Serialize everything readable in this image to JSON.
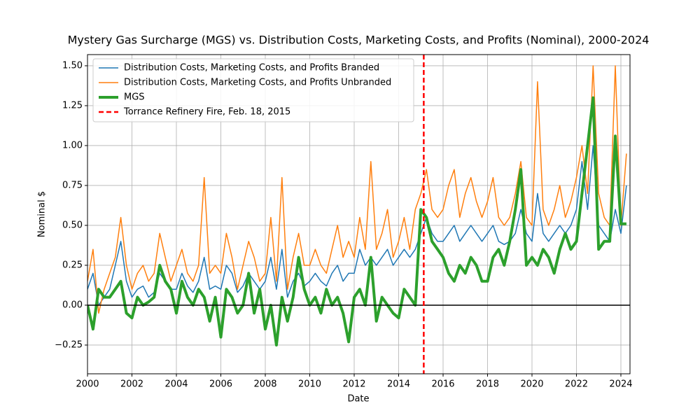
{
  "chart_data": {
    "type": "line",
    "title": "Mystery Gas Surcharge (MGS) vs. Distribution Costs, Marketing Costs, and Profits (Nominal), 2000-2024",
    "x_label": "Date",
    "y_label": "Nominal $",
    "x": [
      2000,
      2000.25,
      2000.5,
      2000.75,
      2001,
      2001.25,
      2001.5,
      2001.75,
      2002,
      2002.25,
      2002.5,
      2002.75,
      2003,
      2003.25,
      2003.5,
      2003.75,
      2004,
      2004.25,
      2004.5,
      2004.75,
      2005,
      2005.25,
      2005.5,
      2005.75,
      2006,
      2006.25,
      2006.5,
      2006.75,
      2007,
      2007.25,
      2007.5,
      2007.75,
      2008,
      2008.25,
      2008.5,
      2008.75,
      2009,
      2009.25,
      2009.5,
      2009.75,
      2010,
      2010.25,
      2010.5,
      2010.75,
      2011,
      2011.25,
      2011.5,
      2011.75,
      2012,
      2012.25,
      2012.5,
      2012.75,
      2013,
      2013.25,
      2013.5,
      2013.75,
      2014,
      2014.25,
      2014.5,
      2014.75,
      2015,
      2015.25,
      2015.5,
      2015.75,
      2016,
      2016.25,
      2016.5,
      2016.75,
      2017,
      2017.25,
      2017.5,
      2017.75,
      2018,
      2018.25,
      2018.5,
      2018.75,
      2019,
      2019.25,
      2019.5,
      2019.75,
      2020,
      2020.25,
      2020.5,
      2020.75,
      2021,
      2021.25,
      2021.5,
      2021.75,
      2022,
      2022.25,
      2022.5,
      2022.75,
      2023,
      2023.25,
      2023.5,
      2023.75,
      2024,
      2024.25
    ],
    "series": [
      {
        "name": "Distribution Costs, Marketing Costs, and Profits Branded",
        "color": "#1f77b4",
        "width": 1.5,
        "values": [
          0.1,
          0.2,
          0.0,
          0.05,
          0.1,
          0.25,
          0.4,
          0.15,
          0.05,
          0.1,
          0.12,
          0.05,
          0.08,
          0.2,
          0.15,
          0.1,
          0.1,
          0.2,
          0.12,
          0.08,
          0.15,
          0.3,
          0.1,
          0.12,
          0.1,
          0.25,
          0.2,
          0.08,
          0.12,
          0.2,
          0.15,
          0.1,
          0.15,
          0.3,
          0.1,
          0.35,
          0.05,
          0.15,
          0.2,
          0.12,
          0.15,
          0.2,
          0.15,
          0.12,
          0.2,
          0.25,
          0.15,
          0.2,
          0.2,
          0.35,
          0.25,
          0.3,
          0.25,
          0.3,
          0.35,
          0.25,
          0.3,
          0.35,
          0.3,
          0.35,
          0.45,
          0.55,
          0.45,
          0.4,
          0.4,
          0.45,
          0.5,
          0.4,
          0.45,
          0.5,
          0.45,
          0.4,
          0.45,
          0.5,
          0.4,
          0.38,
          0.4,
          0.45,
          0.6,
          0.45,
          0.4,
          0.7,
          0.45,
          0.4,
          0.45,
          0.5,
          0.45,
          0.5,
          0.6,
          0.9,
          0.6,
          1.0,
          0.5,
          0.45,
          0.4,
          0.6,
          0.45,
          0.75
        ]
      },
      {
        "name": "Distribution Costs, Marketing Costs, and Profits Unbranded",
        "color": "#ff7f0e",
        "width": 1.5,
        "values": [
          0.15,
          0.35,
          -0.05,
          0.1,
          0.2,
          0.3,
          0.55,
          0.25,
          0.1,
          0.2,
          0.25,
          0.15,
          0.2,
          0.45,
          0.3,
          0.15,
          0.25,
          0.35,
          0.2,
          0.15,
          0.25,
          0.8,
          0.2,
          0.25,
          0.2,
          0.45,
          0.3,
          0.1,
          0.25,
          0.4,
          0.3,
          0.15,
          0.2,
          0.55,
          0.15,
          0.8,
          0.1,
          0.3,
          0.45,
          0.25,
          0.25,
          0.35,
          0.25,
          0.2,
          0.35,
          0.5,
          0.3,
          0.4,
          0.3,
          0.55,
          0.35,
          0.9,
          0.35,
          0.45,
          0.6,
          0.3,
          0.4,
          0.55,
          0.35,
          0.6,
          0.7,
          0.85,
          0.6,
          0.55,
          0.6,
          0.75,
          0.85,
          0.55,
          0.7,
          0.8,
          0.65,
          0.55,
          0.65,
          0.8,
          0.55,
          0.5,
          0.55,
          0.7,
          0.9,
          0.55,
          0.5,
          1.4,
          0.6,
          0.5,
          0.6,
          0.75,
          0.55,
          0.65,
          0.8,
          1.0,
          0.7,
          1.5,
          0.7,
          0.55,
          0.5,
          1.5,
          0.5,
          0.95
        ]
      },
      {
        "name": "MGS",
        "color": "#2ca02c",
        "width": 4,
        "values": [
          0.0,
          -0.15,
          0.1,
          0.05,
          0.05,
          0.1,
          0.15,
          -0.05,
          -0.08,
          0.05,
          0.0,
          0.02,
          0.05,
          0.25,
          0.15,
          0.1,
          -0.05,
          0.15,
          0.05,
          0.0,
          0.1,
          0.05,
          -0.1,
          0.05,
          -0.2,
          0.1,
          0.05,
          -0.05,
          0.0,
          0.2,
          -0.05,
          0.1,
          -0.15,
          0.0,
          -0.25,
          0.05,
          -0.1,
          0.05,
          0.3,
          0.1,
          0.0,
          0.05,
          -0.05,
          0.1,
          0.0,
          0.05,
          -0.05,
          -0.23,
          0.05,
          0.1,
          0.0,
          0.3,
          -0.1,
          0.05,
          0.0,
          -0.05,
          -0.08,
          0.1,
          0.05,
          0.0,
          0.6,
          0.55,
          0.4,
          0.35,
          0.3,
          0.2,
          0.15,
          0.25,
          0.2,
          0.3,
          0.25,
          0.15,
          0.15,
          0.3,
          0.35,
          0.25,
          0.4,
          0.6,
          0.85,
          0.25,
          0.3,
          0.25,
          0.35,
          0.3,
          0.2,
          0.35,
          0.45,
          0.35,
          0.4,
          0.7,
          1.0,
          1.3,
          0.35,
          0.4,
          0.4,
          1.06,
          0.51,
          0.51
        ]
      }
    ],
    "vline": {
      "x": 2015.13,
      "label": "Torrance Refinery Fire, Feb. 18, 2015",
      "color": "#ff0000"
    },
    "hlines": [
      0
    ],
    "xlim": [
      2000,
      2024.41
    ],
    "ylim": [
      -0.43,
      1.57
    ],
    "xticks": [
      2000,
      2002,
      2004,
      2006,
      2008,
      2010,
      2012,
      2014,
      2016,
      2018,
      2020,
      2022,
      2024
    ],
    "yticks": [
      {
        "value": -0.25,
        "label": "−0.25"
      },
      {
        "value": 0,
        "label": "0.00"
      },
      {
        "value": 0.25,
        "label": "0.25"
      },
      {
        "value": 0.5,
        "label": "0.50"
      },
      {
        "value": 0.75,
        "label": "0.75"
      },
      {
        "value": 1,
        "label": "1.00"
      },
      {
        "value": 1.25,
        "label": "1.25"
      },
      {
        "value": 1.5,
        "label": "1.50"
      }
    ],
    "grid": true,
    "legend": "upper-left"
  }
}
